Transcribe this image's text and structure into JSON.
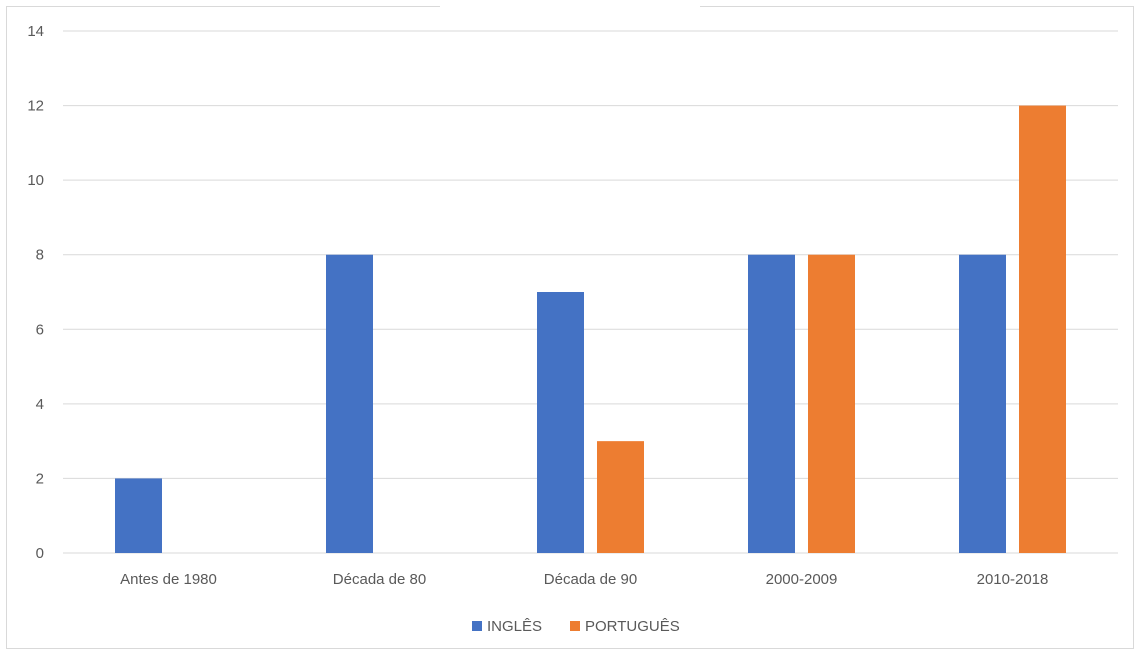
{
  "chart_data": {
    "type": "bar",
    "categories": [
      "Antes de 1980",
      "Década de 80",
      "Década de 90",
      "2000-2009",
      "2010-2018"
    ],
    "series": [
      {
        "name": "INGLÊS",
        "values": [
          2,
          8,
          7,
          8,
          8
        ],
        "color": "#4472C4"
      },
      {
        "name": "PORTUGUÊS",
        "values": [
          0,
          0,
          3,
          8,
          12
        ],
        "color": "#ED7D31"
      }
    ],
    "ylim": [
      0,
      14
    ],
    "yticks": [
      0,
      2,
      4,
      6,
      8,
      10,
      12,
      14
    ],
    "grid": true,
    "legend_position": "bottom"
  }
}
